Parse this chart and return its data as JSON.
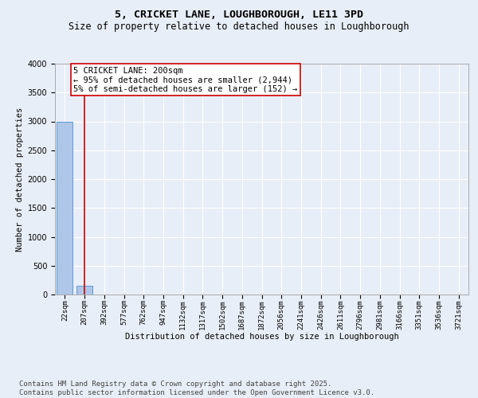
{
  "title": "5, CRICKET LANE, LOUGHBOROUGH, LE11 3PD",
  "subtitle": "Size of property relative to detached houses in Loughborough",
  "xlabel": "Distribution of detached houses by size in Loughborough",
  "ylabel": "Number of detached properties",
  "bar_categories": [
    "22sqm",
    "207sqm",
    "392sqm",
    "577sqm",
    "762sqm",
    "947sqm",
    "1132sqm",
    "1317sqm",
    "1502sqm",
    "1687sqm",
    "1872sqm",
    "2056sqm",
    "2241sqm",
    "2426sqm",
    "2611sqm",
    "2796sqm",
    "2981sqm",
    "3166sqm",
    "3351sqm",
    "3536sqm",
    "3721sqm"
  ],
  "bar_values": [
    3000,
    152,
    0,
    0,
    0,
    0,
    0,
    0,
    0,
    0,
    0,
    0,
    0,
    0,
    0,
    0,
    0,
    0,
    0,
    0,
    0
  ],
  "bar_color": "#aec6e8",
  "bar_edgecolor": "#5b9bd5",
  "annotation_text": "5 CRICKET LANE: 200sqm\n← 95% of detached houses are smaller (2,944)\n5% of semi-detached houses are larger (152) →",
  "annotation_box_color": "#ffffff",
  "annotation_box_edgecolor": "#cc0000",
  "vline_x": 1,
  "vline_color": "#cc0000",
  "ylim": [
    0,
    4000
  ],
  "yticks": [
    0,
    500,
    1000,
    1500,
    2000,
    2500,
    3000,
    3500,
    4000
  ],
  "bg_color": "#e8eef7",
  "grid_color": "#ffffff",
  "footer_line1": "Contains HM Land Registry data © Crown copyright and database right 2025.",
  "footer_line2": "Contains public sector information licensed under the Open Government Licence v3.0.",
  "title_fontsize": 9.5,
  "subtitle_fontsize": 8.5,
  "annotation_fontsize": 7.5,
  "ylabel_fontsize": 7.5,
  "xlabel_fontsize": 7.5,
  "footer_fontsize": 6.5,
  "tick_fontsize": 6.5,
  "ytick_fontsize": 7.0
}
